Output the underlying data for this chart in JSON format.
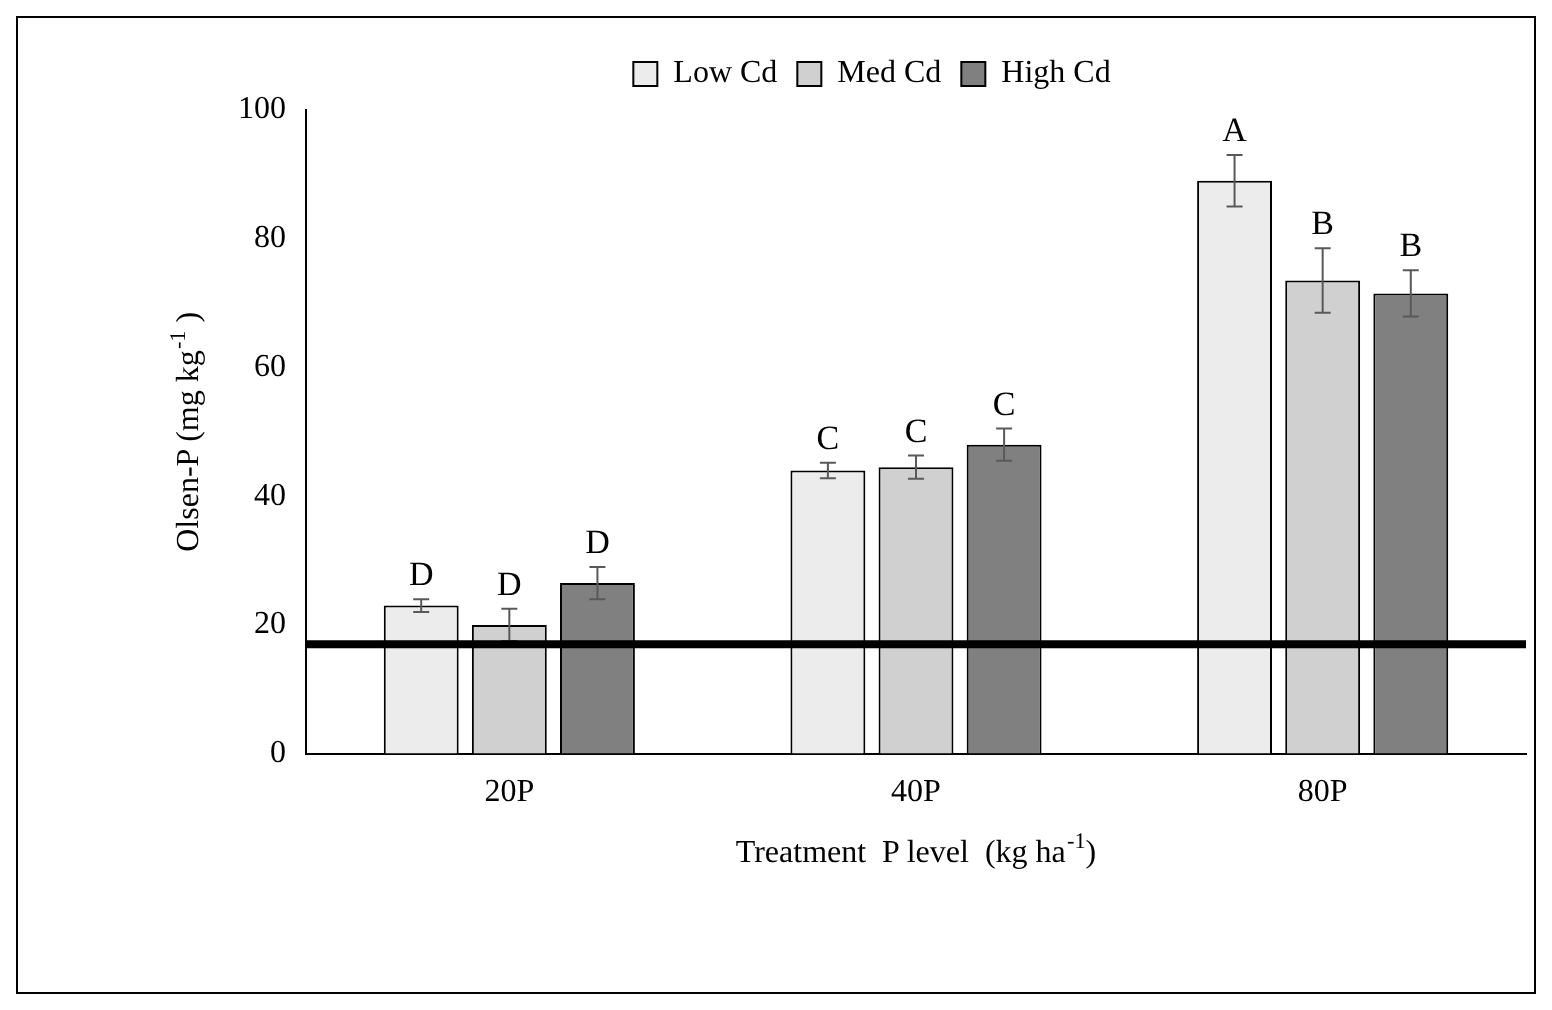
{
  "chart_data": {
    "type": "bar",
    "xlabel": "Treatment  P level  (kg ha$^{-1}$)",
    "ylabel": "Olsen-P (mg kg$^{-1}$ )",
    "categories": [
      "20P",
      "40P",
      "80P"
    ],
    "series": [
      {
        "name": "Low Cd",
        "color": "#ececec",
        "values": [
          23,
          44,
          89
        ],
        "errors": [
          1,
          1.2,
          4
        ],
        "value_labels": [
          "D",
          "C",
          "A"
        ]
      },
      {
        "name": "Med Cd",
        "color": "#d0d0d0",
        "values": [
          20,
          44.5,
          73.5
        ],
        "errors": [
          2.5,
          1.8,
          5
        ],
        "value_labels": [
          "D",
          "C",
          "B"
        ]
      },
      {
        "name": "High Cd",
        "color": "#808080",
        "values": [
          26.5,
          48,
          71.5
        ],
        "errors": [
          2.5,
          2.5,
          3.6
        ],
        "value_labels": [
          "D",
          "C",
          "B"
        ]
      }
    ],
    "ylim": [
      0,
      100
    ],
    "yticks": [
      0,
      20,
      40,
      60,
      80,
      100
    ],
    "grid": false,
    "legend": "top",
    "ref_lines": [
      {
        "axis": "y",
        "value": 17,
        "color": "#000000"
      }
    ]
  }
}
